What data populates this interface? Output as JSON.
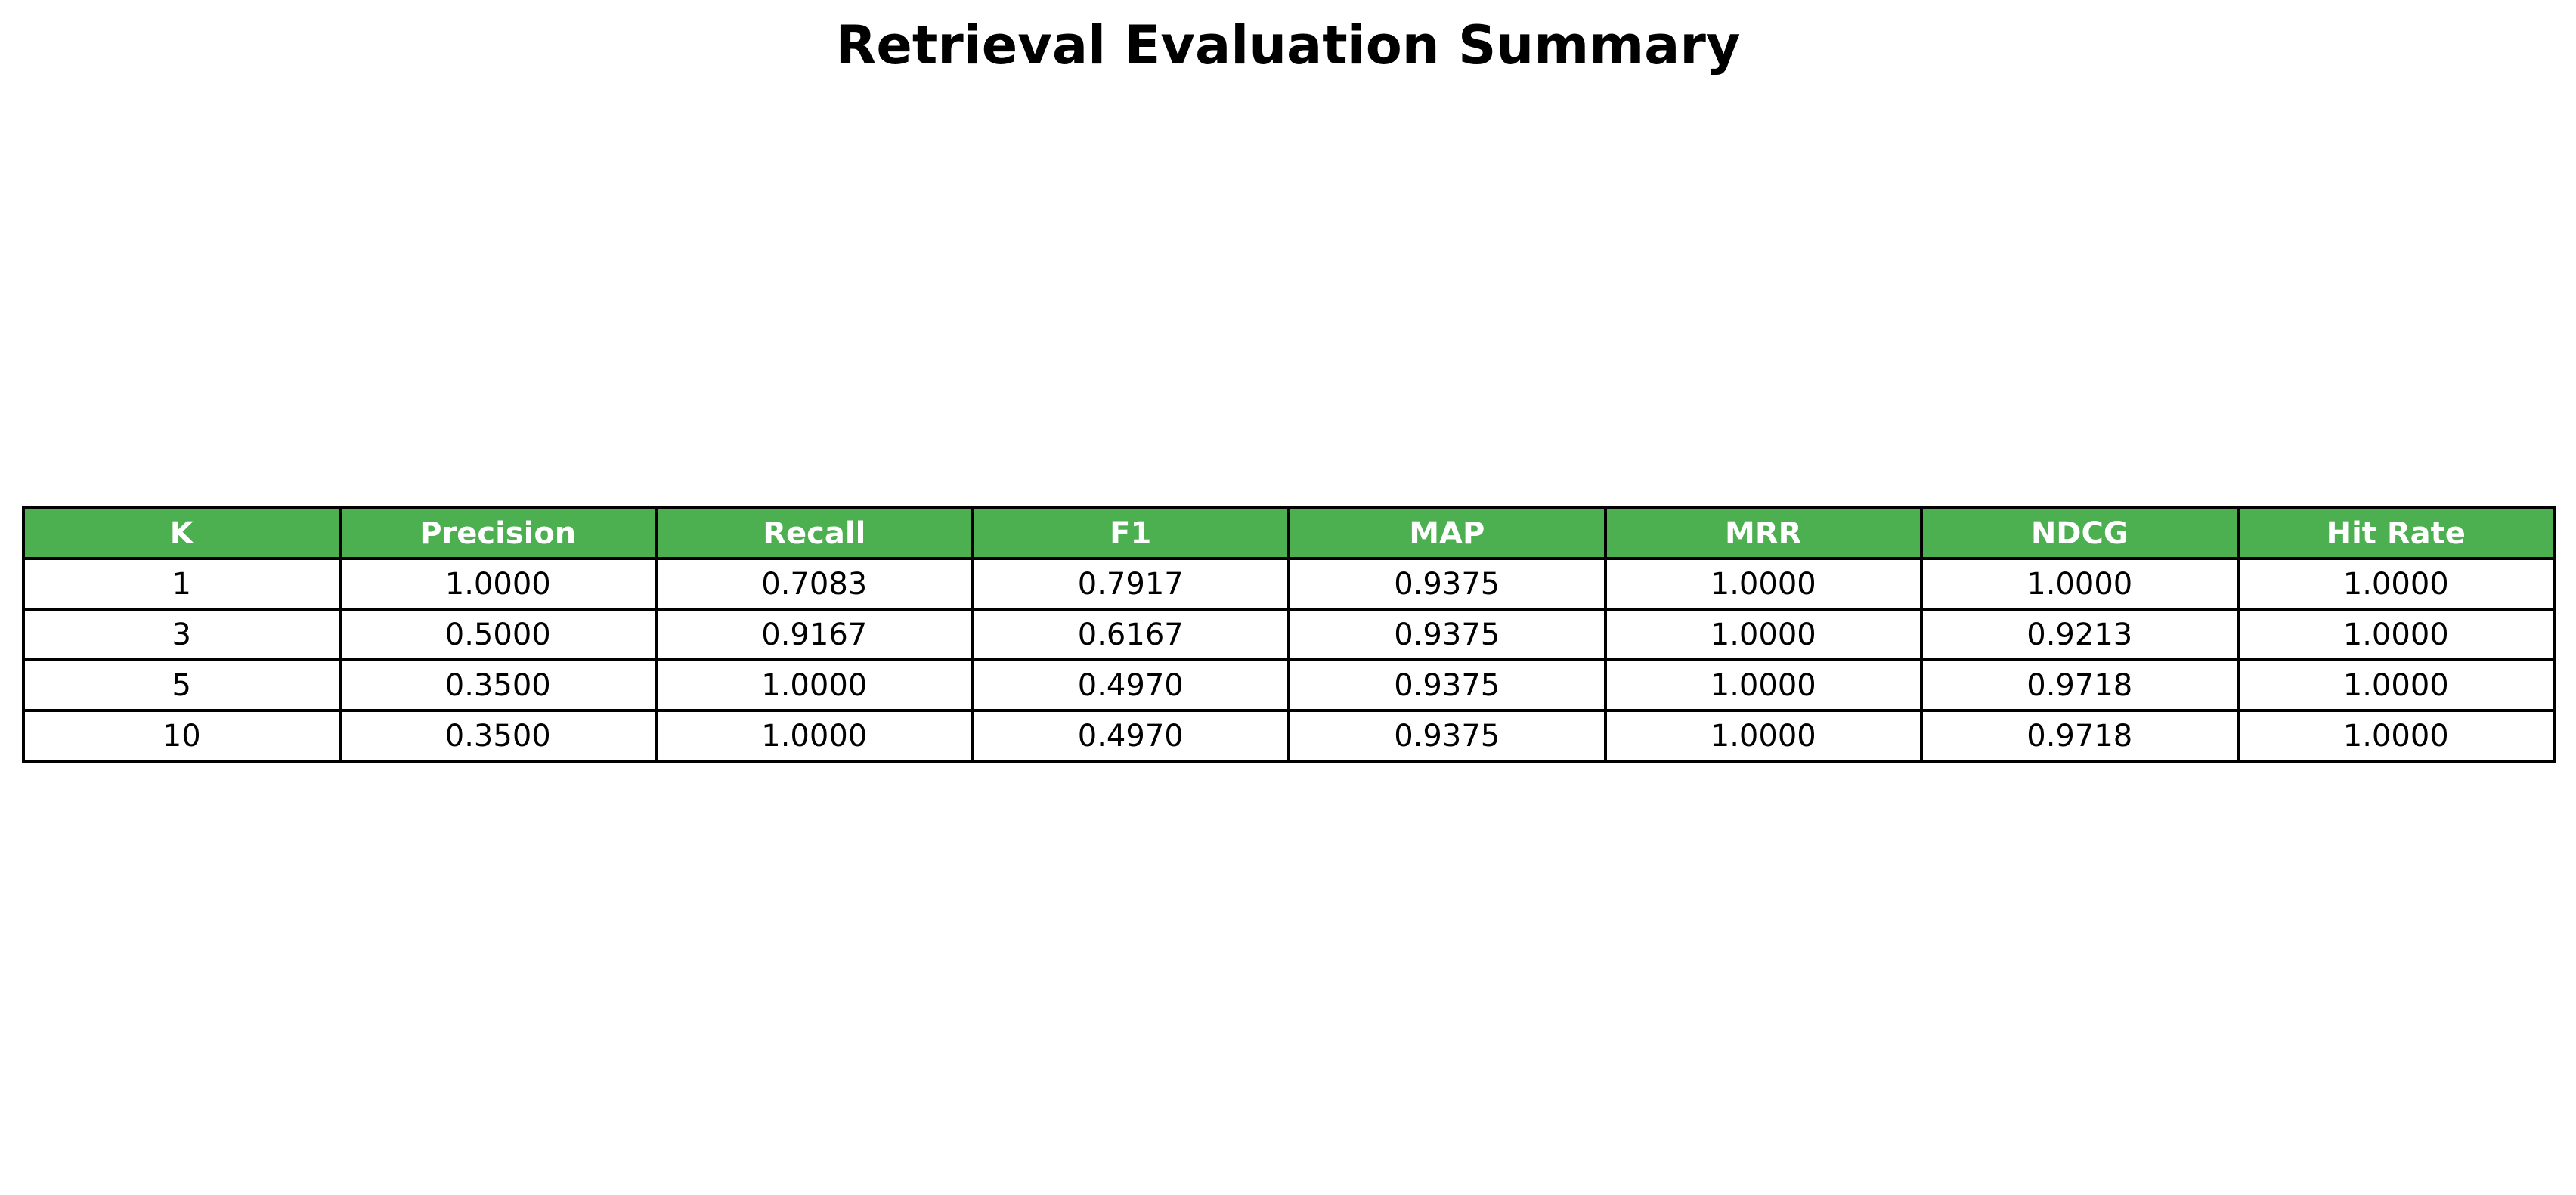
{
  "title": "Retrieval Evaluation Summary",
  "colors": {
    "header_background": "#4caf50",
    "header_text": "#ffffff",
    "cell_background": "#ffffff",
    "border": "#000000"
  },
  "chart_data": {
    "type": "table",
    "title": "Retrieval Evaluation Summary",
    "columns": [
      "K",
      "Precision",
      "Recall",
      "F1",
      "MAP",
      "MRR",
      "NDCG",
      "Hit Rate"
    ],
    "rows": [
      [
        "1",
        "1.0000",
        "0.7083",
        "0.7917",
        "0.9375",
        "1.0000",
        "1.0000",
        "1.0000"
      ],
      [
        "3",
        "0.5000",
        "0.9167",
        "0.6167",
        "0.9375",
        "1.0000",
        "0.9213",
        "1.0000"
      ],
      [
        "5",
        "0.3500",
        "1.0000",
        "0.4970",
        "0.9375",
        "1.0000",
        "0.9718",
        "1.0000"
      ],
      [
        "10",
        "0.3500",
        "1.0000",
        "0.4970",
        "0.9375",
        "1.0000",
        "0.9718",
        "1.0000"
      ]
    ]
  }
}
